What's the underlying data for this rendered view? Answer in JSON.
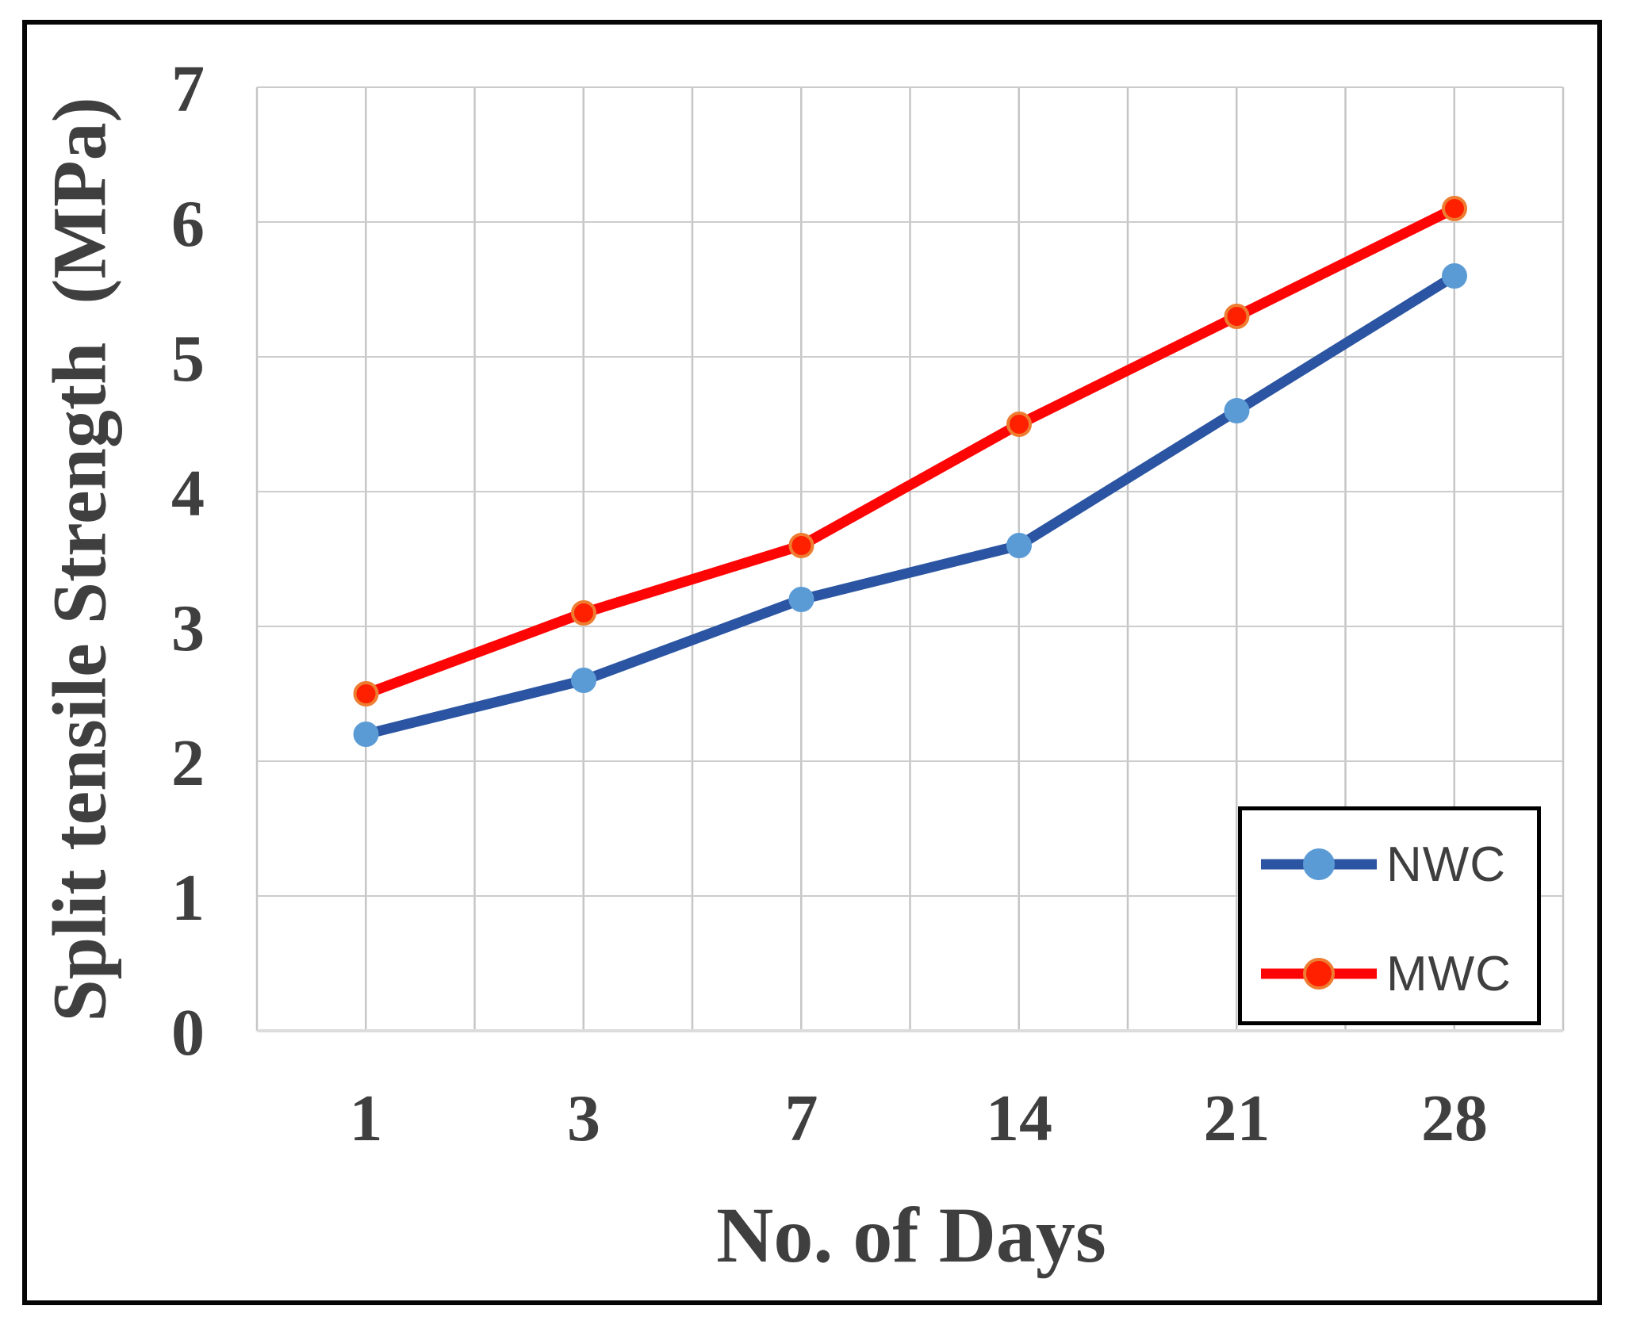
{
  "chart_data": {
    "type": "line",
    "title": "",
    "categories": [
      "1",
      "3",
      "7",
      "14",
      "21",
      "28"
    ],
    "series": [
      {
        "name": "NWC",
        "values": [
          2.2,
          2.6,
          3.2,
          3.6,
          4.6,
          5.6
        ],
        "line_color": "#2b55a2",
        "marker_fill": "#5b9bd5",
        "marker_ring": "#5b9bd5"
      },
      {
        "name": "MWC",
        "values": [
          2.5,
          3.1,
          3.6,
          4.5,
          5.3,
          6.1
        ],
        "line_color": "#fe0505",
        "marker_fill": "#ff2000",
        "marker_ring": "#ed7d31"
      }
    ],
    "xlabel": "No. of Days",
    "ylabel": "Split tensile Strength  (MPa)",
    "ylim": [
      0,
      7
    ],
    "yticks": [
      "0",
      "1",
      "2",
      "3",
      "4",
      "5",
      "6",
      "7"
    ],
    "grid": "on",
    "legend_position": "inside-bottom-right",
    "colors": {
      "gridline": "#c6c6c6",
      "axis_line": "#dcdcdc",
      "tick_text": "#3f3f3f",
      "legend_text": "#3f3f3f",
      "frame": "#000000"
    }
  }
}
